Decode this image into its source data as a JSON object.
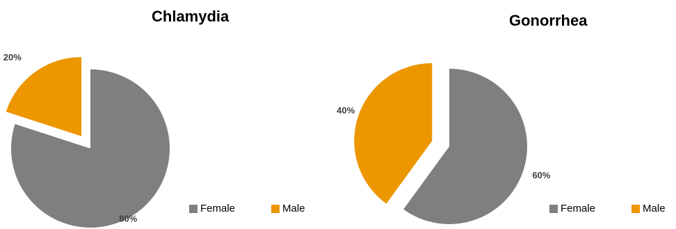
{
  "colors": {
    "female": "#7f7f7f",
    "male": "#ec9600"
  },
  "chart_data": [
    {
      "type": "pie",
      "title": "Chlamydia",
      "categories": [
        "Female",
        "Male"
      ],
      "values": [
        80,
        20
      ],
      "data_labels": [
        "80%",
        "20%"
      ],
      "exploded": "Male",
      "legend": {
        "position": "bottom-right",
        "entries": [
          "Female",
          "Male"
        ]
      }
    },
    {
      "type": "pie",
      "title": "Gonorrhea",
      "categories": [
        "Female",
        "Male"
      ],
      "values": [
        60,
        40
      ],
      "data_labels": [
        "60%",
        "40%"
      ],
      "exploded": "Male",
      "legend": {
        "position": "bottom-right",
        "entries": [
          "Female",
          "Male"
        ]
      }
    }
  ]
}
